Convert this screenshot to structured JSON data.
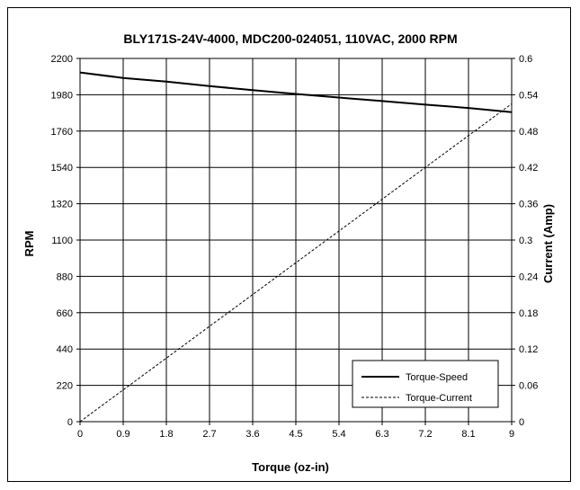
{
  "chart_data": {
    "type": "line",
    "title": "BLY171S-24V-4000, MDC200-024051, 110VAC, 2000 RPM",
    "xlabel": "Torque (oz-in)",
    "ylabel": "RPM",
    "y2label": "Current (Amp)",
    "xlim": [
      0,
      9
    ],
    "ylim": [
      0,
      2200
    ],
    "y2lim": [
      0,
      0.6
    ],
    "x_ticks": [
      "0",
      "0.9",
      "1.8",
      "2.7",
      "3.6",
      "4.5",
      "5.4",
      "6.3",
      "7.2",
      "8.1",
      "9"
    ],
    "y_ticks": [
      "0",
      "220",
      "440",
      "660",
      "880",
      "1100",
      "1320",
      "1540",
      "1760",
      "1980",
      "2200"
    ],
    "y2_ticks": [
      "0",
      "0.06",
      "0.12",
      "0.18",
      "0.24",
      "0.3",
      "0.36",
      "0.42",
      "0.48",
      "0.54",
      "0.6"
    ],
    "grid": true,
    "legend_position": "bottom-right",
    "series": [
      {
        "name": "Torque-Speed",
        "axis": "left",
        "style": "solid",
        "x": [
          0,
          0.9,
          1.8,
          2.7,
          3.6,
          4.5,
          5.4,
          6.3,
          7.2,
          8.1,
          9
        ],
        "y": [
          2115,
          2082,
          2060,
          2033,
          2008,
          1985,
          1963,
          1942,
          1920,
          1900,
          1875
        ]
      },
      {
        "name": "Torque-Current",
        "axis": "right",
        "style": "dashed",
        "x": [
          0,
          9
        ],
        "y": [
          0,
          0.525
        ]
      }
    ]
  }
}
